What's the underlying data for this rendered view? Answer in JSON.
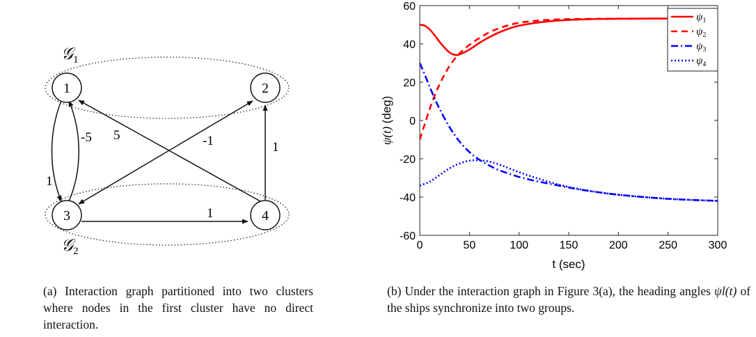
{
  "graph": {
    "cluster1_label": "𝒢",
    "cluster1_sub": "1",
    "cluster2_label": "𝒢",
    "cluster2_sub": "2",
    "nodes": [
      "1",
      "2",
      "3",
      "4"
    ],
    "edge_labels": {
      "e_3_to_1": "-5",
      "e_1_to_3": "1",
      "e_4_to_1": "5",
      "e_4_to_3": "-1",
      "e_4_to_2": "1",
      "e_3_to_4": "1"
    }
  },
  "chart_data": {
    "type": "line",
    "ylabel_italic": "ψ(t)",
    "ylabel_unit": "(deg)",
    "xlabel": "t (sec)",
    "xlim": [
      0,
      300
    ],
    "ylim": [
      -60,
      60
    ],
    "xticks": [
      "0",
      "50",
      "100",
      "150",
      "200",
      "250",
      "300"
    ],
    "yticks": [
      "60",
      "40",
      "20",
      "0",
      "-20",
      "-40",
      "-60"
    ],
    "legend_position": "top-right",
    "series": [
      {
        "name": "ψ1",
        "color": "#ff0000",
        "dash": "solid",
        "x": [
          0,
          5,
          10,
          15,
          20,
          25,
          30,
          35,
          40,
          50,
          60,
          70,
          80,
          90,
          100,
          120,
          140,
          160,
          180,
          200,
          230,
          260,
          300
        ],
        "y": [
          50,
          49.5,
          47.5,
          44.5,
          41,
          38,
          35.5,
          34.3,
          34.5,
          37,
          40.5,
          43.5,
          46,
          48,
          49.5,
          51.2,
          52.2,
          52.7,
          53,
          53.1,
          53.2,
          53.2,
          53.2
        ]
      },
      {
        "name": "ψ2",
        "color": "#ff0000",
        "dash": "dash",
        "x": [
          0,
          5,
          10,
          15,
          20,
          25,
          30,
          35,
          40,
          50,
          60,
          70,
          80,
          90,
          100,
          120,
          140,
          160,
          180,
          200,
          230,
          260,
          300
        ],
        "y": [
          -10,
          -2,
          6,
          13,
          19,
          24,
          28.5,
          32,
          35,
          39.5,
          43,
          46,
          48.2,
          49.8,
          51,
          52.2,
          52.8,
          53,
          53.1,
          53.2,
          53.2,
          53.2,
          53.2
        ]
      },
      {
        "name": "ψ3",
        "color": "#0000ff",
        "dash": "dashdot",
        "x": [
          0,
          5,
          10,
          15,
          20,
          30,
          40,
          50,
          60,
          70,
          80,
          100,
          120,
          140,
          160,
          180,
          200,
          230,
          260,
          300
        ],
        "y": [
          30,
          24,
          17.5,
          11.5,
          6,
          -3.5,
          -11,
          -16.5,
          -20.5,
          -23.5,
          -26,
          -29.5,
          -32,
          -34,
          -36,
          -37.5,
          -38.8,
          -40.2,
          -41.2,
          -42
        ]
      },
      {
        "name": "ψ4",
        "color": "#0000ff",
        "dash": "dot",
        "x": [
          0,
          10,
          20,
          30,
          40,
          50,
          60,
          70,
          80,
          100,
          120,
          140,
          160,
          180,
          200,
          230,
          260,
          300
        ],
        "y": [
          -34,
          -32,
          -28.5,
          -25,
          -22.5,
          -21,
          -20.8,
          -21.5,
          -23,
          -27,
          -30.5,
          -33.5,
          -35.8,
          -37.5,
          -38.8,
          -40.2,
          -41.2,
          -42
        ]
      }
    ]
  },
  "captions": {
    "a_label": "(a)",
    "a_text": "Interaction graph partitioned into two clusters where nodes in the first cluster have no direct interaction.",
    "b_label": "(b)",
    "b_text_1": "Under the interaction graph in Figure 3(a), the heading angles",
    "b_math": "ψl(t)",
    "b_text_2": "of the ships synchronize into two groups."
  }
}
